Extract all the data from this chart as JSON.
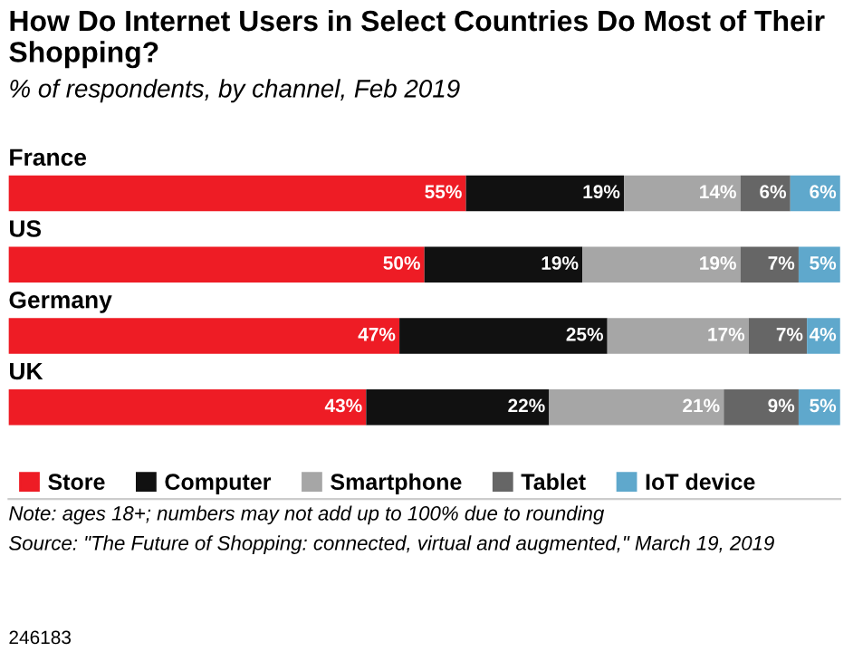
{
  "chart_data": {
    "type": "bar",
    "orientation": "horizontal",
    "stacked": true,
    "title": "How Do Internet Users in Select Countries Do Most of Their Shopping?",
    "subtitle": "% of respondents, by channel, Feb 2019",
    "categories": [
      "France",
      "US",
      "Germany",
      "UK"
    ],
    "series": [
      {
        "name": "Store",
        "color": "#ee1c25",
        "values": [
          55,
          50,
          47,
          43
        ],
        "value_labels": [
          "55%",
          "50%",
          "47%",
          "43%"
        ]
      },
      {
        "name": "Computer",
        "color": "#111111",
        "values": [
          19,
          19,
          25,
          22
        ],
        "value_labels": [
          "19%",
          "19%",
          "25%",
          "22%"
        ]
      },
      {
        "name": "Smartphone",
        "color": "#a6a6a6",
        "values": [
          14,
          19,
          17,
          21
        ],
        "value_labels": [
          "14%",
          "19%",
          "17%",
          "21%"
        ]
      },
      {
        "name": "Tablet",
        "color": "#666666",
        "values": [
          6,
          7,
          7,
          9
        ],
        "value_labels": [
          "6%",
          "7%",
          "7%",
          "9%"
        ]
      },
      {
        "name": "IoT device",
        "color": "#5fa8cc",
        "values": [
          6,
          5,
          4,
          5
        ],
        "value_labels": [
          "6%",
          "5%",
          "4%",
          "5%"
        ]
      }
    ],
    "legend": "bottom",
    "annotations": [
      "Note: ages 18+; numbers may not add up to 100% due to rounding",
      "Source: \"The Future of Shopping: connected, virtual and augmented,\" March 19, 2019",
      "246183"
    ]
  }
}
